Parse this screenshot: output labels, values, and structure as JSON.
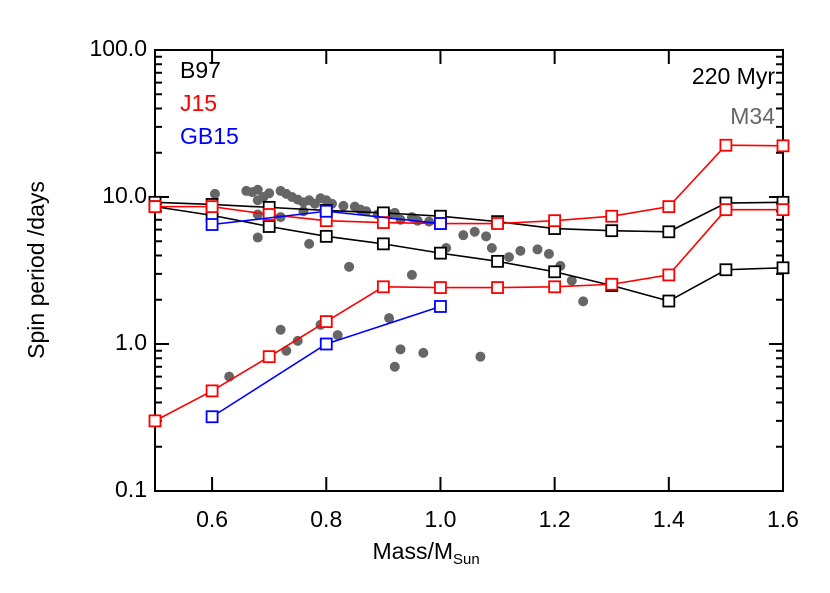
{
  "chart_data": {
    "type": "line",
    "xlabel": "Mass/M",
    "xlabel_sub": "Sun",
    "ylabel": "Spin period /days",
    "annotations": [
      "220 Myr",
      "M34"
    ],
    "xlim": [
      0.5,
      1.6
    ],
    "xticks": [
      0.6,
      0.8,
      {
        "value": 1.0,
        "label": "1.0"
      },
      1.2,
      1.4,
      1.6
    ],
    "ylim": [
      0.1,
      100
    ],
    "yticks": [
      {
        "value": 0.1,
        "label": "0.1"
      },
      {
        "value": 1,
        "label": "1.0"
      },
      {
        "value": 10,
        "label": "10.0"
      },
      {
        "value": 100,
        "label": "100.0"
      }
    ],
    "log_y": true,
    "series": [
      {
        "name": "B97",
        "color": "#000000",
        "x": [
          0.5,
          0.6,
          0.7,
          0.8,
          0.9,
          1.0,
          1.1,
          1.2,
          1.3,
          1.4,
          1.5,
          1.6
        ],
        "branches": [
          [
            9.2,
            8.9,
            8.5,
            8.1,
            7.8,
            7.4,
            6.8,
            6.1,
            5.9,
            5.8,
            9.1,
            9.2
          ],
          [
            8.6,
            7.5,
            6.3,
            5.4,
            4.8,
            4.15,
            3.65,
            3.1,
            2.5,
            1.96,
            3.2,
            3.3
          ]
        ]
      },
      {
        "name": "J15",
        "color": "#ff0000",
        "x": [
          0.5,
          0.6,
          0.7,
          0.8,
          0.9,
          1.0,
          1.1,
          1.2,
          1.3,
          1.4,
          1.5,
          1.6
        ],
        "branches": [
          [
            8.6,
            8.6,
            7.6,
            6.9,
            6.7,
            6.6,
            6.6,
            6.9,
            7.4,
            8.6,
            22.5,
            22.3
          ],
          [
            0.3,
            0.48,
            0.82,
            1.42,
            2.45,
            2.42,
            2.42,
            2.45,
            2.55,
            2.95,
            8.2,
            8.2
          ]
        ]
      },
      {
        "name": "GB15",
        "color": "#0000ff",
        "x": [
          0.6,
          0.8,
          1.0
        ],
        "branches": [
          [
            6.5,
            8.0,
            6.6
          ],
          [
            0.32,
            1.0,
            1.8
          ]
        ]
      }
    ],
    "scatter": {
      "color": "#666666",
      "x": [
        0.605,
        0.6,
        0.63,
        0.66,
        0.67,
        0.68,
        0.68,
        0.69,
        0.68,
        0.7,
        0.72,
        0.73,
        0.74,
        0.75,
        0.76,
        0.77,
        0.78,
        0.79,
        0.8,
        0.81,
        0.83,
        0.85,
        0.86,
        0.87,
        0.89,
        0.9,
        0.91,
        0.92,
        0.93,
        0.95,
        0.96,
        0.98,
        1.0,
        1.01,
        1.04,
        1.06,
        1.08,
        1.09,
        1.12,
        1.14,
        1.17,
        1.19,
        1.21,
        1.23,
        1.25,
        0.72,
        0.73,
        0.75,
        0.77,
        0.79,
        0.82,
        0.84,
        0.91,
        0.92,
        0.93,
        0.95,
        0.97,
        1.07,
        0.68,
        0.72,
        0.76
      ],
      "y": [
        10.5,
        8.0,
        0.6,
        11.0,
        10.8,
        11.2,
        9.5,
        10.0,
        5.3,
        10.6,
        11.0,
        10.5,
        10.0,
        9.6,
        9.2,
        9.5,
        9.0,
        9.8,
        9.5,
        9.0,
        8.7,
        8.6,
        8.2,
        8.0,
        7.6,
        7.5,
        7.6,
        7.8,
        7.0,
        7.3,
        6.9,
        6.8,
        6.8,
        4.5,
        5.5,
        5.8,
        5.4,
        4.5,
        3.9,
        4.3,
        4.4,
        4.1,
        3.4,
        2.7,
        1.95,
        1.25,
        0.9,
        1.05,
        4.8,
        1.35,
        1.15,
        3.35,
        1.5,
        0.7,
        0.92,
        2.95,
        0.87,
        0.82,
        7.6,
        7.3,
        8.0
      ]
    }
  }
}
